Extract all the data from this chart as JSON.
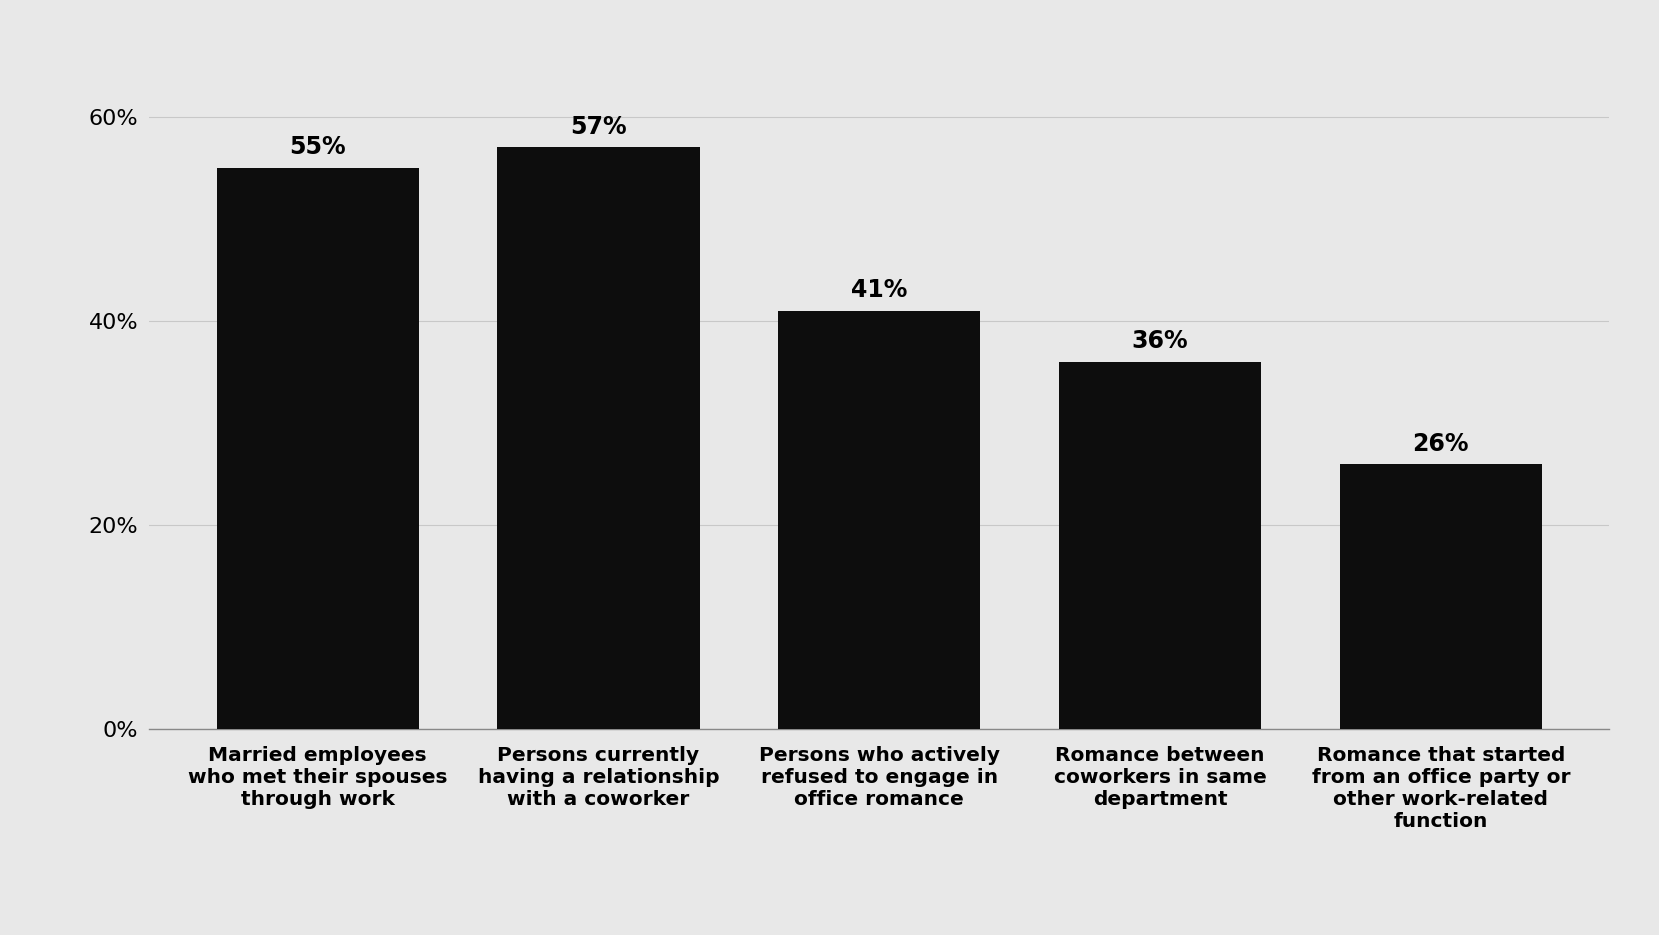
{
  "categories": [
    "Married employees\nwho met their spouses\nthrough work",
    "Persons currently\nhaving a relationship\nwith a coworker",
    "Persons who actively\nrefused to engage in\noffice romance",
    "Romance between\ncoworkers in same\ndepartment",
    "Romance that started\nfrom an office party or\nother work-related\nfunction"
  ],
  "values": [
    55,
    57,
    41,
    36,
    26
  ],
  "bar_color": "#0d0d0d",
  "background_color": "#e8e8e8",
  "ylabel_ticks": [
    0,
    20,
    40,
    60
  ],
  "ylim": [
    0,
    65
  ],
  "bar_width": 0.72,
  "label_fontsize": 14.5,
  "tick_fontsize": 16,
  "value_label_fontsize": 17,
  "grid_color": "#c8c8c8",
  "bottom_spine_color": "#888888"
}
